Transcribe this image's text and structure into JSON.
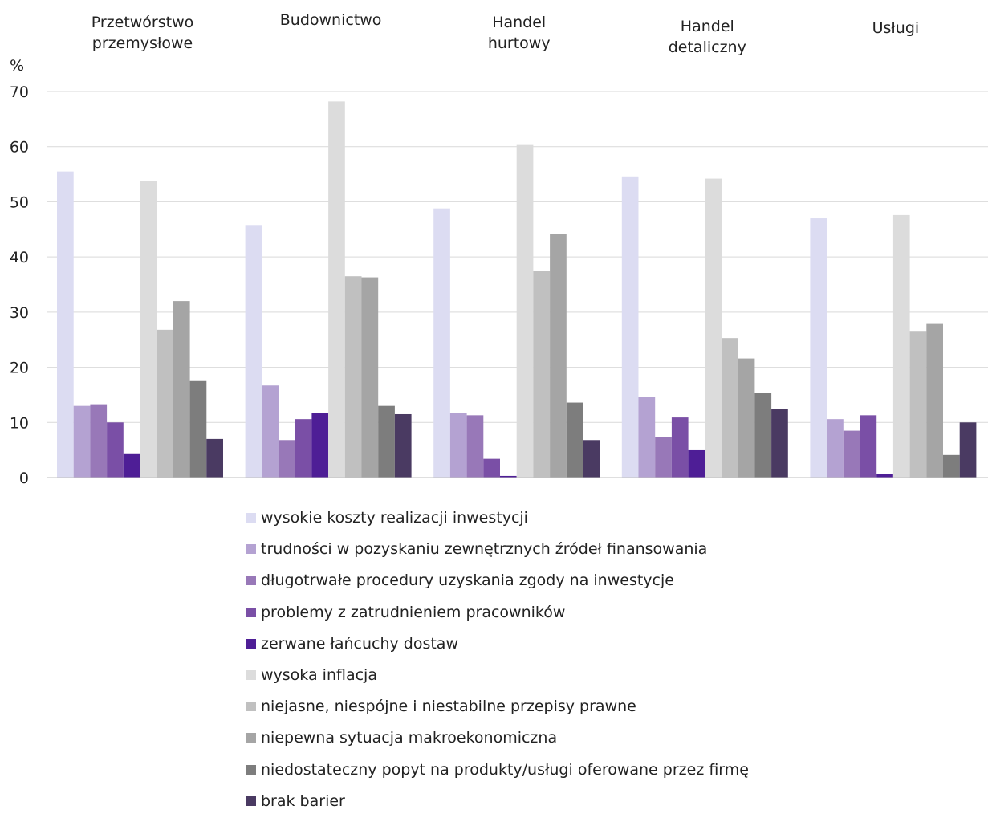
{
  "chart_data": {
    "type": "bar",
    "unit_label": "%",
    "ylim": [
      0,
      70
    ],
    "yticks": [
      "0",
      "10",
      "20",
      "30",
      "40",
      "50",
      "60",
      "70"
    ],
    "grid": true,
    "legend_position": "bottom",
    "categories": [
      [
        "Przetwórstwo",
        "przemysłowe"
      ],
      [
        "Budownictwo"
      ],
      [
        "Handel",
        "hurtowy"
      ],
      [
        "Handel",
        "detaliczny"
      ],
      [
        "Usługi"
      ]
    ],
    "series": [
      {
        "name": "wysokie koszty realizacji inwestycji",
        "color": "#dcdcf2",
        "values": [
          55.5,
          45.8,
          48.8,
          54.6,
          47.0
        ]
      },
      {
        "name": "trudności w pozyskaniu zewnętrznych źródeł finansowania",
        "color": "#b4a2d2",
        "values": [
          13.0,
          16.7,
          11.7,
          14.6,
          10.6
        ]
      },
      {
        "name": "długotrwałe procedury uzyskania zgody na inwestycje",
        "color": "#9878b8",
        "values": [
          13.3,
          6.8,
          11.3,
          7.4,
          8.5
        ]
      },
      {
        "name": "problemy z zatrudnieniem pracowników",
        "color": "#7a4fa6",
        "values": [
          10.0,
          10.6,
          3.4,
          10.9,
          11.3
        ]
      },
      {
        "name": "zerwane łańcuchy dostaw",
        "color": "#4e1e96",
        "values": [
          4.4,
          11.7,
          0.3,
          5.1,
          0.7
        ]
      },
      {
        "name": "wysoka inflacja",
        "color": "#dcdcdc",
        "values": [
          53.8,
          68.2,
          60.3,
          54.2,
          47.6
        ]
      },
      {
        "name": "niejasne, niespójne i niestabilne przepisy prawne",
        "color": "#c0c0c0",
        "values": [
          26.8,
          36.5,
          37.4,
          25.3,
          26.6
        ]
      },
      {
        "name": "niepewna sytuacja makroekonomiczna",
        "color": "#a5a5a5",
        "values": [
          32.0,
          36.3,
          44.1,
          21.6,
          28.0
        ]
      },
      {
        "name": "niedostateczny popyt na produkty/usługi oferowane przez firmę",
        "color": "#7d7d7d",
        "values": [
          17.5,
          13.0,
          13.6,
          15.3,
          4.1
        ]
      },
      {
        "name": "brak barier",
        "color": "#4a3a62",
        "values": [
          7.0,
          11.5,
          6.8,
          12.4,
          10.0
        ]
      }
    ]
  }
}
